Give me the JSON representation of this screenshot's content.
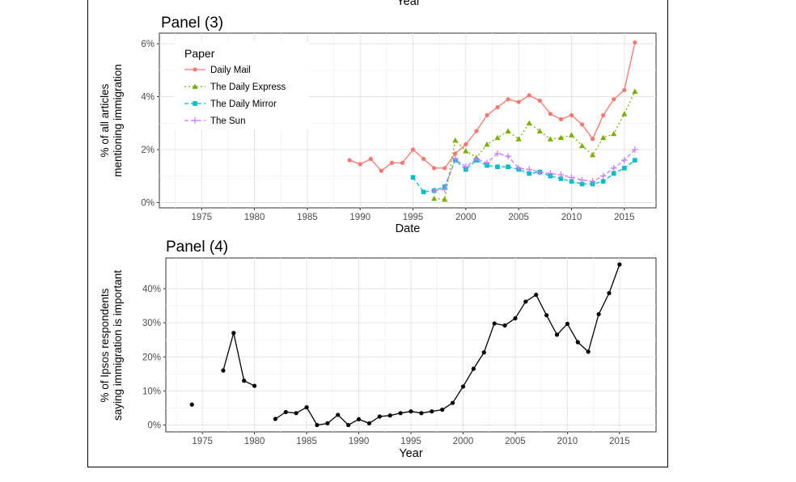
{
  "top_cut_label": "Year",
  "chart_data": [
    {
      "type": "line",
      "title": "Panel (3)",
      "xlabel": "Date",
      "ylabel_lines": [
        "% of all articles",
        "mentioning immigration"
      ],
      "xlim": [
        1971,
        2018
      ],
      "ylim": [
        -0.2,
        6.4
      ],
      "x_ticks": [
        1975,
        1980,
        1985,
        1990,
        1995,
        2000,
        2005,
        2010,
        2015
      ],
      "y_ticks": [
        0,
        2,
        4,
        6
      ],
      "y_tick_labels": [
        "0%",
        "2%",
        "4%",
        "6%"
      ],
      "grid": true,
      "legend": {
        "title": "Paper",
        "placement": "top-left"
      },
      "series": [
        {
          "name": "Daily Mail",
          "color": "#F8766D",
          "marker": "circle",
          "dash": "solid",
          "x": [
            1989,
            1990,
            1991,
            1992,
            1993,
            1994,
            1995,
            1996,
            1997,
            1998,
            1999,
            2000,
            2001,
            2002,
            2003,
            2004,
            2005,
            2006,
            2007,
            2008,
            2009,
            2010,
            2011,
            2012,
            2013,
            2014,
            2015,
            2016
          ],
          "y": [
            1.6,
            1.45,
            1.65,
            1.2,
            1.5,
            1.5,
            2.0,
            1.65,
            1.3,
            1.3,
            1.85,
            2.2,
            2.7,
            3.3,
            3.6,
            3.9,
            3.8,
            4.05,
            3.85,
            3.35,
            3.15,
            3.3,
            2.95,
            2.4,
            3.3,
            3.9,
            4.25,
            6.05
          ]
        },
        {
          "name": "The Daily Express",
          "color": "#7CAE00",
          "marker": "triangle",
          "dash": "dotted",
          "x": [
            1997,
            1998,
            1999,
            2000,
            2001,
            2002,
            2003,
            2004,
            2005,
            2006,
            2007,
            2008,
            2009,
            2010,
            2011,
            2012,
            2013,
            2014,
            2015,
            2016
          ],
          "y": [
            0.15,
            0.12,
            2.35,
            1.95,
            1.7,
            2.2,
            2.45,
            2.7,
            2.4,
            3.0,
            2.7,
            2.4,
            2.45,
            2.55,
            2.15,
            1.8,
            2.45,
            2.6,
            3.35,
            4.2
          ]
        },
        {
          "name": "The Daily Mirror",
          "color": "#00BFC4",
          "marker": "square",
          "dash": "dashed",
          "x": [
            1995,
            1996,
            1997,
            1998,
            1999,
            2000,
            2001,
            2002,
            2003,
            2004,
            2005,
            2006,
            2007,
            2008,
            2009,
            2010,
            2011,
            2012,
            2013,
            2014,
            2015,
            2016
          ],
          "y": [
            0.95,
            0.4,
            0.45,
            0.6,
            1.6,
            1.25,
            1.6,
            1.4,
            1.35,
            1.35,
            1.25,
            1.1,
            1.15,
            1.0,
            0.9,
            0.8,
            0.7,
            0.7,
            0.8,
            1.1,
            1.3,
            1.6
          ]
        },
        {
          "name": "The Sun",
          "color": "#C77CFF",
          "marker": "plus",
          "dash": "dashed",
          "x": [
            1997,
            1998,
            1999,
            2000,
            2001,
            2002,
            2003,
            2004,
            2005,
            2006,
            2007,
            2008,
            2009,
            2010,
            2011,
            2012,
            2013,
            2014,
            2015,
            2016
          ],
          "y": [
            0.45,
            0.5,
            1.65,
            1.35,
            1.65,
            1.5,
            1.85,
            1.75,
            1.3,
            1.25,
            1.15,
            1.1,
            1.05,
            0.95,
            0.85,
            0.8,
            1.0,
            1.3,
            1.6,
            2.0
          ]
        }
      ]
    },
    {
      "type": "line",
      "title": "Panel (4)",
      "xlabel": "Year",
      "ylabel_lines": [
        "% of Ipsos respondents",
        "saying immigration is important"
      ],
      "xlim": [
        1971.5,
        2018.5
      ],
      "ylim": [
        -2,
        49
      ],
      "x_ticks": [
        1975,
        1980,
        1985,
        1990,
        1995,
        2000,
        2005,
        2010,
        2015
      ],
      "y_ticks": [
        0,
        10,
        20,
        30,
        40
      ],
      "y_tick_labels": [
        "0%",
        "10%",
        "20%",
        "30%",
        "40%"
      ],
      "grid": true,
      "series": [
        {
          "name": "",
          "color": "#000000",
          "marker": "circle",
          "dash": "solid",
          "segments": [
            {
              "x": [
                1974
              ],
              "y": [
                6
              ]
            },
            {
              "x": [
                1977,
                1978,
                1979,
                1980
              ],
              "y": [
                16,
                27,
                13,
                11.5
              ]
            },
            {
              "x": [
                1982,
                1983,
                1984,
                1985,
                1986,
                1987,
                1988,
                1989,
                1990,
                1991,
                1992,
                1993,
                1994,
                1995,
                1996,
                1997,
                1998,
                1999,
                2000,
                2001,
                2002,
                2003,
                2004,
                2005,
                2006,
                2007,
                2008,
                2009,
                2010,
                2011,
                2012,
                2013,
                2014,
                2015
              ],
              "y": [
                1.8,
                3.8,
                3.5,
                5.2,
                0,
                0.5,
                3,
                0,
                1.7,
                0.5,
                2.5,
                2.8,
                3.5,
                4,
                3.5,
                4,
                4.5,
                6.5,
                11.3,
                16.5,
                21.3,
                29.8,
                29.2,
                31.3,
                36.2,
                38.2,
                32.2,
                26.5,
                29.7,
                24.3,
                21.5,
                32.5,
                38.7,
                47.1
              ]
            }
          ]
        }
      ]
    }
  ]
}
